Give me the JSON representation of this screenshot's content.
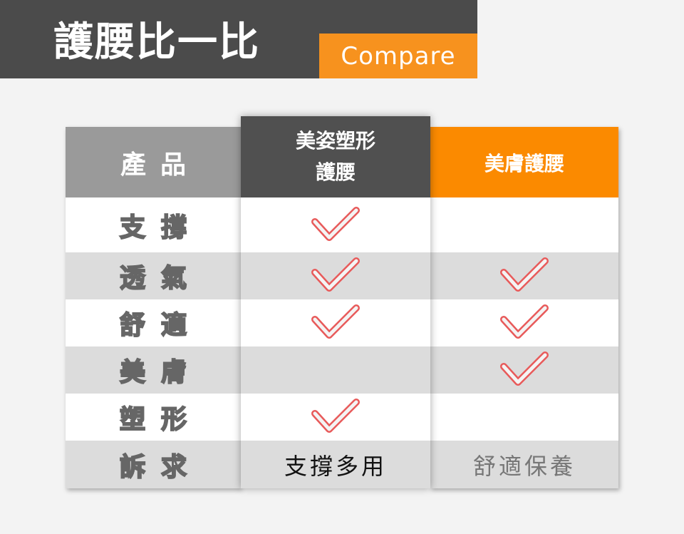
{
  "header": {
    "title": "護腰比一比",
    "badge": "Compare"
  },
  "colors": {
    "accent": "#fb8a00",
    "dark": "#505050",
    "check": "#e85a5a"
  },
  "table": {
    "columns": [
      {
        "label": "產品"
      },
      {
        "label_line1": "美姿塑形",
        "label_line2": "護腰"
      },
      {
        "label": "美膚護腰"
      }
    ],
    "rows": [
      {
        "label": "支撐",
        "a": true,
        "b": false
      },
      {
        "label": "透氣",
        "a": true,
        "b": true
      },
      {
        "label": "舒適",
        "a": true,
        "b": true
      },
      {
        "label": "美膚",
        "a": false,
        "b": true
      },
      {
        "label": "塑形",
        "a": true,
        "b": false
      },
      {
        "label": "訴求",
        "a_text": "支撐多用",
        "b_text": "舒適保養"
      }
    ]
  }
}
